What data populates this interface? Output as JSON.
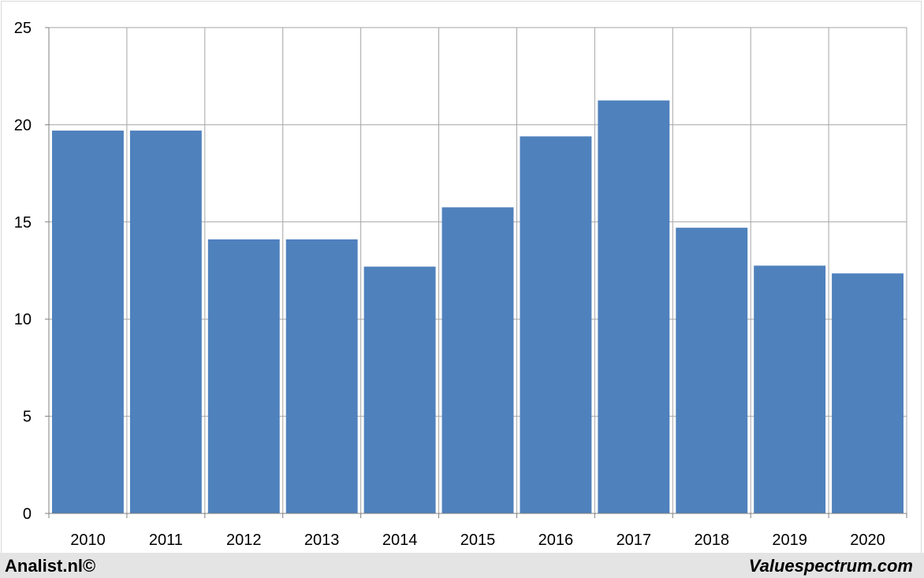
{
  "chart_data": {
    "type": "bar",
    "categories": [
      "2010",
      "2011",
      "2012",
      "2013",
      "2014",
      "2015",
      "2016",
      "2017",
      "2018",
      "2019",
      "2020"
    ],
    "values": [
      19.7,
      19.7,
      14.1,
      14.1,
      12.7,
      15.75,
      19.4,
      21.25,
      14.7,
      12.75,
      12.35
    ],
    "ylim": [
      0,
      25
    ],
    "yticks": [
      0,
      5,
      10,
      15,
      20,
      25
    ],
    "grid": true,
    "bar_color": "#4f81bd",
    "grid_color": "#a6a6a6"
  },
  "footer": {
    "left_brand": "Analist.nl©",
    "right_brand": "Valuespectrum.com"
  }
}
